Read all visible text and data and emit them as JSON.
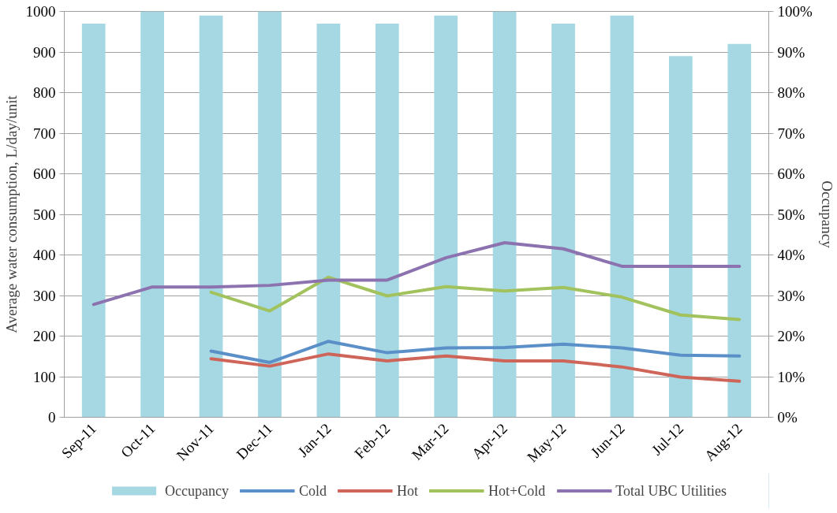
{
  "chart_data": {
    "type": "line",
    "ylabel": "Average water consumption, L/day/unit",
    "y2label": "Occupancy",
    "categories": [
      "Sep-11",
      "Oct-11",
      "Nov-11",
      "Dec-11",
      "Jan-12",
      "Feb-12",
      "Mar-12",
      "Apr-12",
      "May-12",
      "Jun-12",
      "Jul-12",
      "Aug-12"
    ],
    "series": [
      {
        "name": "Occupancy",
        "type": "bar",
        "axis": "y2",
        "color": "#a5d8e3",
        "values": [
          97,
          100,
          99,
          100,
          97,
          97,
          99,
          100,
          97,
          99,
          89,
          92
        ]
      },
      {
        "name": "Cold",
        "color": "#5b8fc8",
        "values": [
          null,
          null,
          163,
          135,
          187,
          159,
          171,
          172,
          180,
          171,
          153,
          151
        ]
      },
      {
        "name": "Hot",
        "color": "#cf6459",
        "values": [
          null,
          null,
          144,
          126,
          156,
          139,
          151,
          139,
          139,
          124,
          99,
          89
        ]
      },
      {
        "name": "Hot+Cold",
        "color": "#a2c25d",
        "values": [
          null,
          null,
          308,
          262,
          345,
          299,
          322,
          311,
          320,
          296,
          252,
          241
        ]
      },
      {
        "name": "Total UBC Utilities",
        "color": "#8c73b0",
        "values": [
          278,
          321,
          321,
          325,
          338,
          338,
          393,
          430,
          415,
          372,
          372,
          372
        ]
      }
    ],
    "ylim": [
      0,
      1000
    ],
    "yticks": [
      0,
      100,
      200,
      300,
      400,
      500,
      600,
      700,
      800,
      900,
      1000
    ],
    "y2lim": [
      0,
      100
    ],
    "y2ticks": [
      {
        "value": 0,
        "label": "0%"
      },
      {
        "value": 10,
        "label": "10%"
      },
      {
        "value": 20,
        "label": "20%"
      },
      {
        "value": 30,
        "label": "30%"
      },
      {
        "value": 40,
        "label": "40%"
      },
      {
        "value": 50,
        "label": "50%"
      },
      {
        "value": 60,
        "label": "60%"
      },
      {
        "value": 70,
        "label": "70%"
      },
      {
        "value": 80,
        "label": "80%"
      },
      {
        "value": 90,
        "label": "90%"
      },
      {
        "value": 100,
        "label": "100%"
      }
    ],
    "grid": "y",
    "legend": "bottom",
    "marker": "none",
    "line_style": "solid"
  }
}
